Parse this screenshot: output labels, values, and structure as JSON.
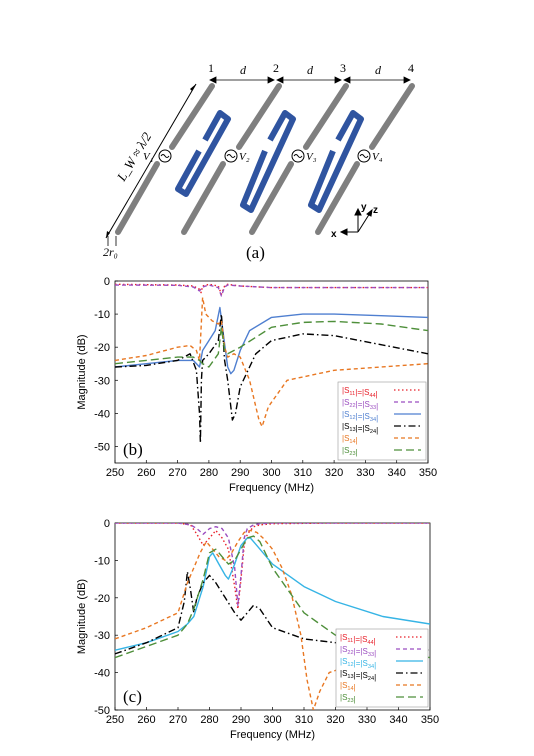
{
  "diagram": {
    "panel_label": "(a)",
    "length_label": "L_W ≈ λ/2",
    "radius_label": "2r₀",
    "spacing_label": "d",
    "port_numbers": [
      "1",
      "2",
      "3",
      "4"
    ],
    "source_labels": [
      "V₁",
      "V₂",
      "V₃",
      "V₄"
    ],
    "axes": {
      "x": "x",
      "y": "y",
      "z": "z"
    },
    "colors": {
      "dipole": "#7f7f7f",
      "resonator": "#2f54a0"
    }
  },
  "chart_data": [
    {
      "type": "line",
      "panel_label": "(b)",
      "xlabel": "Frequency (MHz)",
      "ylabel": "Magnitude (dB)",
      "xlim": [
        250,
        350
      ],
      "ylim": [
        -55,
        0
      ],
      "xticks": [
        "250",
        "260",
        "270",
        "280",
        "290",
        "300",
        "310",
        "320",
        "330",
        "340",
        "350"
      ],
      "yticks": [
        "0",
        "-10",
        "-20",
        "-30",
        "-40",
        "-50"
      ],
      "legend_position": "bottom-right",
      "series": [
        {
          "name": "|S11|=|S44|",
          "color": "#e8202a",
          "dash": "dotted",
          "x": [
            250,
            270,
            275,
            277,
            277.5,
            278,
            280,
            283,
            284,
            285,
            286,
            290,
            300,
            320,
            350
          ],
          "y": [
            -1,
            -1.2,
            -1.5,
            -2.5,
            -3.5,
            -1.5,
            -1,
            -1.5,
            -4,
            -1.5,
            -1,
            -1.5,
            -2,
            -2,
            -2
          ]
        },
        {
          "name": "|S22|=|S33|",
          "color": "#9b4dc0",
          "dash": "dashed",
          "x": [
            250,
            270,
            275,
            277,
            278,
            280,
            283,
            284,
            285,
            286,
            290,
            300,
            320,
            350
          ],
          "y": [
            -1.2,
            -1.3,
            -1.8,
            -3,
            -1.8,
            -1.2,
            -2,
            -4.5,
            -1.8,
            -1.2,
            -1.5,
            -2,
            -2,
            -2
          ]
        },
        {
          "name": "|S12|=|S34|",
          "color": "#4f7fd0",
          "dash": "solid",
          "x": [
            250,
            260,
            270,
            275,
            277,
            278,
            280,
            282,
            283.5,
            285,
            286,
            287,
            288,
            290,
            293,
            300,
            310,
            320,
            335,
            350
          ],
          "y": [
            -26,
            -25,
            -24,
            -24,
            -26,
            -21,
            -18,
            -15,
            -8,
            -19,
            -26,
            -28,
            -27,
            -21,
            -15,
            -11,
            -10,
            -10,
            -10.5,
            -11
          ]
        },
        {
          "name": "|S13|=|S24|",
          "color": "#000000",
          "dash": "dashdot",
          "x": [
            250,
            260,
            270,
            274,
            276,
            277,
            277.3,
            277.6,
            278,
            280,
            283,
            284,
            285,
            286,
            287.5,
            288.5,
            290,
            295,
            300,
            310,
            320,
            350
          ],
          "y": [
            -26,
            -25.5,
            -24,
            -22,
            -27,
            -40,
            -49,
            -30,
            -24,
            -22,
            -18,
            -10,
            -24,
            -30,
            -42,
            -40,
            -32,
            -22,
            -18,
            -16,
            -16.5,
            -22
          ]
        },
        {
          "name": "|S14|",
          "color": "#e87722",
          "dash": "dashed",
          "x": [
            250,
            260,
            270,
            274,
            276,
            277,
            278,
            279,
            281,
            283,
            284,
            285,
            286,
            288,
            290,
            293,
            295,
            296,
            297,
            299,
            305,
            320,
            350
          ],
          "y": [
            -24,
            -22.5,
            -20,
            -19.5,
            -21,
            -24,
            -5,
            -10,
            -12,
            -13,
            -12,
            -20,
            -23,
            -22,
            -23,
            -30,
            -38,
            -42,
            -44,
            -38,
            -30,
            -27,
            -25
          ]
        },
        {
          "name": "|S23|",
          "color": "#4e8f3a",
          "dash": "longdash",
          "x": [
            250,
            260,
            270,
            275,
            277,
            278,
            280,
            283,
            284,
            285,
            286,
            288,
            290,
            295,
            300,
            310,
            320,
            335,
            350
          ],
          "y": [
            -25,
            -24,
            -23,
            -23,
            -24,
            -25,
            -26,
            -22,
            -14,
            -21,
            -22,
            -21,
            -20,
            -17,
            -14,
            -12.5,
            -12.2,
            -13,
            -15
          ]
        }
      ]
    },
    {
      "type": "line",
      "panel_label": "(c)",
      "xlabel": "Frequency (MHz)",
      "ylabel": "Magnitude (dB)",
      "xlim": [
        250,
        350
      ],
      "ylim": [
        -50,
        0
      ],
      "xticks": [
        "250",
        "260",
        "270",
        "280",
        "290",
        "300",
        "310",
        "320",
        "330",
        "340",
        "350"
      ],
      "yticks": [
        "0",
        "-10",
        "-20",
        "-30",
        "-40",
        "-50"
      ],
      "legend_position": "bottom-right",
      "series": [
        {
          "name": "|S11|=|S44|",
          "color": "#e8202a",
          "dash": "dotted",
          "x": [
            250,
            270,
            274,
            276,
            278,
            280,
            282,
            284,
            286,
            288,
            289,
            290,
            291,
            292,
            294,
            296,
            300,
            320,
            350
          ],
          "y": [
            0,
            0,
            -0.5,
            -3,
            -6,
            -4,
            -2,
            -4,
            -7,
            -17,
            -23,
            -15,
            -6,
            -3,
            -1,
            -0.5,
            -0.2,
            0,
            0
          ]
        },
        {
          "name": "|S22|=|S33|",
          "color": "#9b4dc0",
          "dash": "dashed",
          "x": [
            250,
            270,
            274,
            276,
            278,
            280,
            282,
            284,
            286,
            288,
            289,
            290,
            291,
            292,
            294,
            296,
            300,
            320,
            350
          ],
          "y": [
            0,
            0,
            -0.5,
            -1.5,
            -3,
            -1.5,
            -1,
            -1.5,
            -4,
            -12,
            -22,
            -14,
            -4,
            -1.5,
            -0.5,
            -0.2,
            0,
            0,
            0
          ]
        },
        {
          "name": "|S12|=|S34|",
          "color": "#36b4e5",
          "dash": "solid",
          "x": [
            250,
            260,
            270,
            273,
            275,
            278,
            280,
            281,
            283,
            285,
            286,
            288,
            290,
            292,
            293,
            295,
            300,
            310,
            320,
            335,
            350
          ],
          "y": [
            -34,
            -32,
            -29,
            -27,
            -25,
            -17,
            -9,
            -8,
            -11,
            -14,
            -15,
            -11,
            -6,
            -4,
            -4,
            -6,
            -11,
            -17,
            -21,
            -25,
            -27
          ]
        },
        {
          "name": "|S13|=|S24|",
          "color": "#000000",
          "dash": "dashdot",
          "x": [
            250,
            260,
            270,
            272,
            273,
            274,
            275,
            276,
            278,
            280,
            282,
            285,
            288,
            290,
            292,
            294,
            296,
            300,
            310,
            320,
            335,
            350
          ],
          "y": [
            -35,
            -32,
            -28,
            -21,
            -13,
            -18,
            -24,
            -20,
            -16,
            -14,
            -16,
            -20,
            -24,
            -26,
            -24,
            -22,
            -23,
            -28,
            -31,
            -32,
            -33,
            -34
          ]
        },
        {
          "name": "|S14|",
          "color": "#e87722",
          "dash": "dashed",
          "x": [
            250,
            260,
            270,
            273,
            275,
            277,
            279,
            281,
            283,
            285,
            287,
            289,
            291,
            293,
            295,
            297,
            300,
            303,
            306,
            309,
            311,
            313,
            315,
            318,
            325,
            335,
            350
          ],
          "y": [
            -31,
            -28,
            -24,
            -16,
            -12,
            -8,
            -5,
            -7,
            -9,
            -10,
            -8,
            -5,
            -2.5,
            -2,
            -2.5,
            -4,
            -7,
            -12,
            -19,
            -30,
            -42,
            -50,
            -45,
            -40,
            -38,
            -37,
            -36
          ]
        },
        {
          "name": "|S23|",
          "color": "#4e8f3a",
          "dash": "longdash",
          "x": [
            250,
            260,
            270,
            273,
            275,
            278,
            280,
            282,
            284,
            286,
            288,
            290,
            292,
            294,
            296,
            300,
            310,
            320,
            330,
            340,
            350
          ],
          "y": [
            -36,
            -33,
            -30,
            -27,
            -23,
            -15,
            -8,
            -7,
            -9,
            -11,
            -10,
            -7,
            -4,
            -3.5,
            -5,
            -12,
            -24,
            -30,
            -33,
            -35,
            -36
          ]
        }
      ]
    }
  ]
}
